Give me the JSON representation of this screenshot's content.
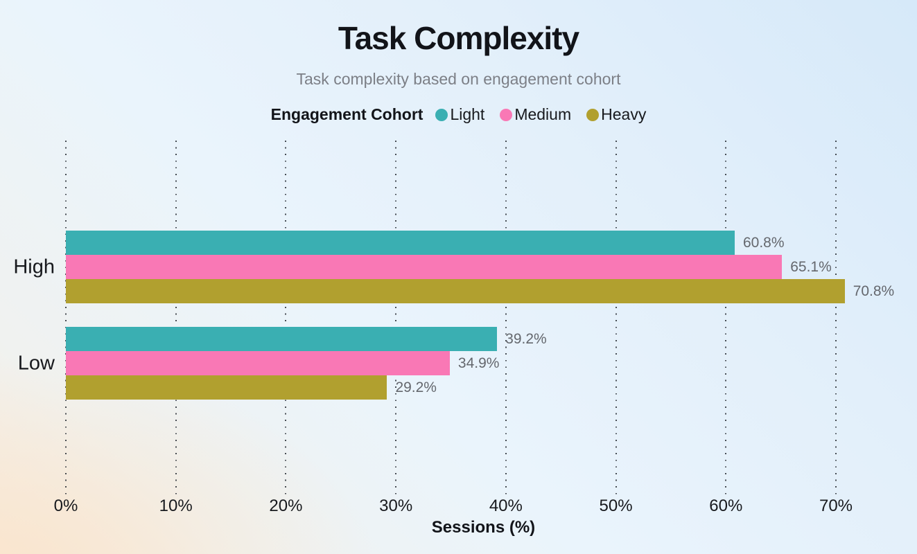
{
  "chart": {
    "title": "Task Complexity",
    "subtitle": "Task complexity based on engagement cohort",
    "xlabel": "Sessions (%)"
  },
  "legend": {
    "title": "Engagement Cohort",
    "items": [
      {
        "label": "Light",
        "color": "#3aafb2"
      },
      {
        "label": "Medium",
        "color": "#f978b5"
      },
      {
        "label": "Heavy",
        "color": "#b1a02f"
      }
    ]
  },
  "chart_data": {
    "type": "bar",
    "orientation": "horizontal",
    "title": "Task Complexity",
    "subtitle": "Task complexity based on engagement cohort",
    "xlabel": "Sessions (%)",
    "ylabel": "",
    "categories": [
      "High",
      "Low"
    ],
    "series": [
      {
        "name": "Light",
        "color": "#3aafb2",
        "values": [
          60.8,
          39.2
        ]
      },
      {
        "name": "Medium",
        "color": "#f978b5",
        "values": [
          65.1,
          34.9
        ]
      },
      {
        "name": "Heavy",
        "color": "#b1a02f",
        "values": [
          70.8,
          29.2
        ]
      }
    ],
    "value_labels": [
      [
        "60.8%",
        "65.1%",
        "70.8%"
      ],
      [
        "39.2%",
        "34.9%",
        "29.2%"
      ]
    ],
    "xlim": [
      0,
      70
    ],
    "x_ticks": [
      "0%",
      "10%",
      "20%",
      "30%",
      "40%",
      "50%",
      "60%",
      "70%"
    ],
    "grid": "vertical-dotted",
    "legend_title": "Engagement Cohort",
    "legend_position": "top-center"
  }
}
